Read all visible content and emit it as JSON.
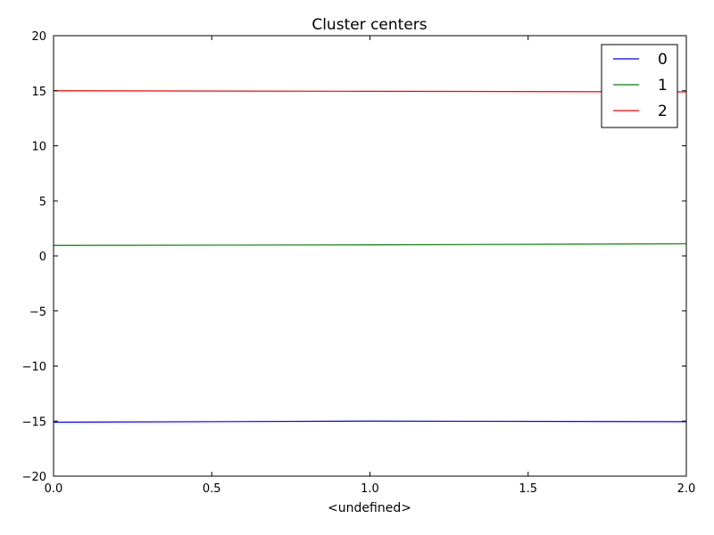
{
  "chart_data": {
    "type": "line",
    "title": "Cluster centers",
    "xlabel": "<undefined>",
    "ylabel": "",
    "x": [
      0.0,
      1.0,
      2.0
    ],
    "xlim": [
      0.0,
      2.0
    ],
    "ylim": [
      -20,
      20
    ],
    "xticks": [
      0.0,
      0.5,
      1.0,
      1.5,
      2.0
    ],
    "xtick_labels": [
      "0.0",
      "0.5",
      "1.0",
      "1.5",
      "2.0"
    ],
    "yticks": [
      -20,
      -15,
      -10,
      -5,
      0,
      5,
      10,
      15,
      20
    ],
    "ytick_labels": [
      "−20",
      "−15",
      "−10",
      "−5",
      "0",
      "5",
      "10",
      "15",
      "20"
    ],
    "grid": false,
    "legend_position": "top-right",
    "series": [
      {
        "name": "0",
        "color": "#0000ff",
        "values": [
          -15.1,
          -15.0,
          -15.05
        ]
      },
      {
        "name": "1",
        "color": "#008000",
        "values": [
          0.95,
          1.0,
          1.1
        ]
      },
      {
        "name": "2",
        "color": "#ff0000",
        "values": [
          15.0,
          14.95,
          14.9
        ]
      }
    ]
  }
}
